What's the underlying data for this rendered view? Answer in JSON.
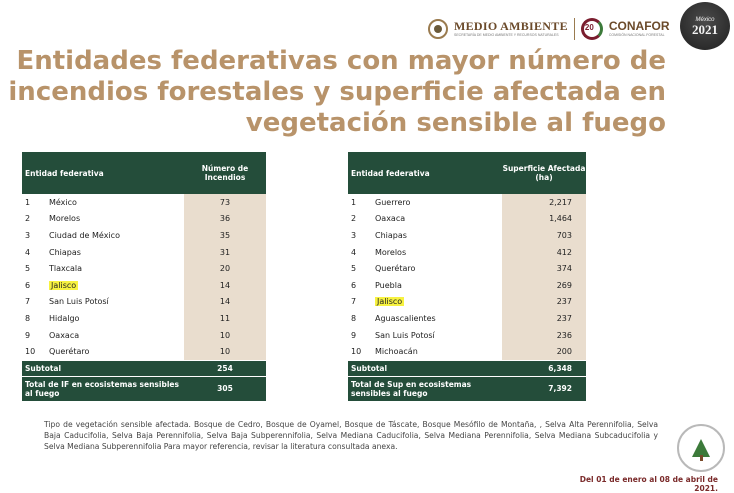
{
  "header": {
    "gov_title": "MEDIO AMBIENTE",
    "gov_subtitle": "SECRETARÍA DE MEDIO AMBIENTE Y RECURSOS NATURALES",
    "conafor_title": "CONAFOR",
    "conafor_subtitle": "COMISIÓN NACIONAL FORESTAL",
    "conafor_years": "20",
    "year_badge_small": "México",
    "year_badge_big": "2021"
  },
  "title": "Entidades federativas con mayor número de incendios forestales y superficie afectada en vegetación sensible al fuego",
  "left_table": {
    "col_entity": "Entidad federativa",
    "col_value": "Número de Incendios",
    "rows": [
      {
        "rank": "1",
        "name": "México",
        "value": "73"
      },
      {
        "rank": "2",
        "name": "Morelos",
        "value": "36"
      },
      {
        "rank": "3",
        "name": "Ciudad de México",
        "value": "35"
      },
      {
        "rank": "4",
        "name": "Chiapas",
        "value": "31"
      },
      {
        "rank": "5",
        "name": "Tlaxcala",
        "value": "20"
      },
      {
        "rank": "6",
        "name": "Jalisco",
        "value": "14",
        "highlight": true
      },
      {
        "rank": "7",
        "name": "San Luis Potosí",
        "value": "14"
      },
      {
        "rank": "8",
        "name": "Hidalgo",
        "value": "11"
      },
      {
        "rank": "9",
        "name": "Oaxaca",
        "value": "10"
      },
      {
        "rank": "10",
        "name": "Querétaro",
        "value": "10"
      }
    ],
    "subtotal_label": "Subtotal",
    "subtotal_value": "254",
    "total_label": "Total de IF en ecosistemas sensibles al fuego",
    "total_value": "305"
  },
  "right_table": {
    "col_entity": "Entidad federativa",
    "col_value": "Superficie Afectada (ha)",
    "rows": [
      {
        "rank": "1",
        "name": "Guerrero",
        "value": "2,217"
      },
      {
        "rank": "2",
        "name": "Oaxaca",
        "value": "1,464"
      },
      {
        "rank": "3",
        "name": "Chiapas",
        "value": "703"
      },
      {
        "rank": "4",
        "name": "Morelos",
        "value": "412"
      },
      {
        "rank": "5",
        "name": "Querétaro",
        "value": "374"
      },
      {
        "rank": "6",
        "name": "Puebla",
        "value": "269"
      },
      {
        "rank": "7",
        "name": "Jalisco",
        "value": "237",
        "highlight": true
      },
      {
        "rank": "8",
        "name": "Aguascalientes",
        "value": "237"
      },
      {
        "rank": "9",
        "name": "San Luis Potosí",
        "value": "236"
      },
      {
        "rank": "10",
        "name": "Michoacán",
        "value": "200"
      }
    ],
    "subtotal_label": "Subtotal",
    "subtotal_value": "6,348",
    "total_label": "Total de Sup en ecosistemas sensibles al fuego",
    "total_value": "7,392"
  },
  "note": "Tipo de vegetación sensible afectada. Bosque de Cedro, Bosque de Oyamel, Bosque de Táscate, Bosque Mesófilo de Montaña, , Selva Alta Perennifolia, Selva Baja Caducifolia, Selva Baja Perennifolia, Selva Baja Subperennifolia, Selva Mediana Caducifolia, Selva Mediana Perennifolia, Selva Mediana Subcaducifolia y Selva Mediana Subperennifolia Para mayor referencia, revisar la literatura consultada anexa.",
  "date_range": "Del 01 de enero al 08 de abril de 2021.",
  "colors": {
    "title": "#b8936a",
    "table_header": "#244d3a",
    "value_column": "#e9ddce",
    "highlight": "#f7f240",
    "date": "#7a2a2a"
  }
}
